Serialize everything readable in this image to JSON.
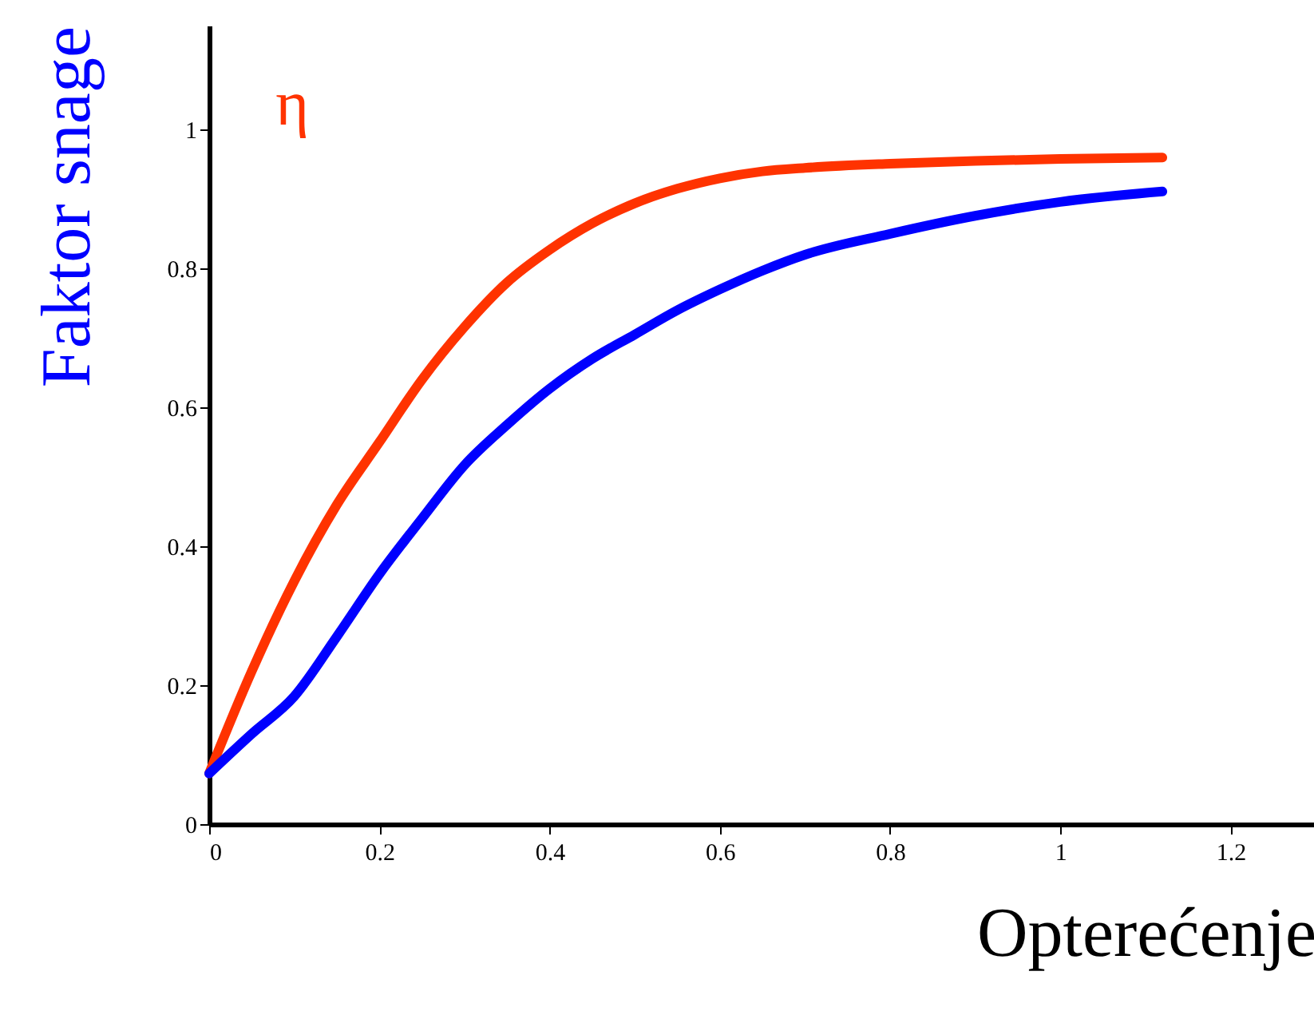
{
  "chart_data": {
    "type": "line",
    "xlabel": "Opterećenje",
    "ylabel": "Faktor snage",
    "x": [
      0,
      0.05,
      0.1,
      0.15,
      0.2,
      0.25,
      0.3,
      0.35,
      0.4,
      0.45,
      0.5,
      0.55,
      0.6,
      0.65,
      0.7,
      0.8,
      0.9,
      1.0,
      1.12
    ],
    "series": [
      {
        "name": "η",
        "color": "#ff3300",
        "values": [
          0.073,
          0.22,
          0.35,
          0.46,
          0.55,
          0.64,
          0.716,
          0.78,
          0.827,
          0.865,
          0.894,
          0.915,
          0.93,
          0.94,
          0.945,
          0.951,
          0.955,
          0.958,
          0.96
        ]
      },
      {
        "color": "#0000ff",
        "values": [
          0.073,
          0.13,
          0.184,
          0.27,
          0.36,
          0.44,
          0.517,
          0.575,
          0.627,
          0.67,
          0.705,
          0.74,
          0.77,
          0.797,
          0.82,
          0.85,
          0.876,
          0.896,
          0.911
        ]
      }
    ],
    "xlim": [
      0,
      1.3
    ],
    "ylim": [
      0,
      1.15
    ],
    "xticks": [
      0,
      0.2,
      0.4,
      0.6,
      0.8,
      1,
      1.2
    ],
    "yticks": [
      0,
      0.2,
      0.4,
      0.6,
      0.8,
      1
    ],
    "grid": false,
    "legend": false,
    "marker": "none",
    "line_style": "solid"
  }
}
